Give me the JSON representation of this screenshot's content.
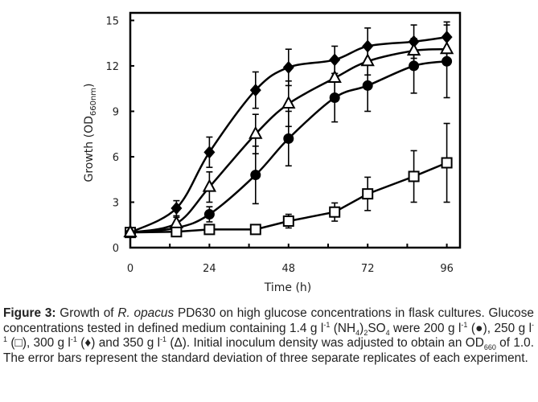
{
  "chart_data": {
    "type": "line",
    "title": "",
    "xlabel": "Time (h)",
    "ylabel_main": "Growth (OD",
    "ylabel_sub": "660nm",
    "ylabel_close": ")",
    "xlim": [
      0,
      100
    ],
    "ylim": [
      0,
      15.5
    ],
    "xticks": [
      0,
      24,
      48,
      72,
      96
    ],
    "xminor_ticks": [
      12,
      36,
      60,
      84
    ],
    "yticks": [
      0,
      3,
      6,
      9,
      12,
      15
    ],
    "grid": false,
    "legend": "none (described in caption)",
    "series": [
      {
        "name": "200 g/l glucose",
        "marker": "circle-filled",
        "x": [
          0,
          14,
          24,
          38,
          48,
          62,
          72,
          86,
          96
        ],
        "y": [
          1.0,
          1.3,
          2.2,
          4.8,
          7.2,
          9.9,
          10.7,
          12.0,
          12.3
        ],
        "err": [
          0.1,
          0.2,
          0.5,
          1.9,
          1.8,
          1.6,
          1.7,
          1.8,
          2.4
        ]
      },
      {
        "name": "250 g/l glucose",
        "marker": "square-open",
        "x": [
          0,
          14,
          24,
          38,
          48,
          62,
          72,
          86,
          96
        ],
        "y": [
          1.0,
          1.05,
          1.2,
          1.2,
          1.75,
          2.35,
          3.55,
          4.7,
          5.6
        ],
        "err": [
          0.1,
          0.1,
          0.15,
          0.15,
          0.45,
          0.6,
          1.1,
          1.7,
          2.6
        ]
      },
      {
        "name": "300 g/l glucose",
        "marker": "diamond-filled",
        "x": [
          0,
          14,
          24,
          38,
          48,
          62,
          72,
          86,
          96
        ],
        "y": [
          1.0,
          2.6,
          6.3,
          10.4,
          11.9,
          12.4,
          13.3,
          13.6,
          13.9
        ],
        "err": [
          0.1,
          0.5,
          1.0,
          1.2,
          1.2,
          0.9,
          1.2,
          1.1,
          1.0
        ]
      },
      {
        "name": "350 g/l glucose",
        "marker": "triangle-open",
        "x": [
          0,
          14,
          24,
          38,
          48,
          62,
          72,
          86,
          96
        ],
        "y": [
          1.0,
          1.6,
          4.0,
          7.5,
          9.5,
          11.2,
          12.3,
          13.0,
          13.1
        ],
        "err": [
          0.1,
          0.4,
          1.0,
          1.3,
          1.5,
          1.1,
          0.9,
          0.8,
          0.7
        ]
      }
    ]
  },
  "caption": {
    "label": "Figure 3:",
    "t1": " Growth of ",
    "organism": "R. opacus",
    "t2": " PD630 on high glucose concentrations in flask cultures. Glucose concentrations tested in defined medium containing 1.4 g l",
    "sup1": "-1",
    "t3": " (NH",
    "sub1": "4",
    "t4": ")",
    "sub2": "2",
    "t5": "SO",
    "sub3": "4",
    "t6": " were 200 g l",
    "sup2": "-1",
    "t7": " (●), 250 g l",
    "sup3": "-1",
    "t8": " (□), 300 g l",
    "sup4": "-1",
    "t9": " (♦) and 350 g l",
    "sup5": "-1",
    "t10": " (Δ). Initial inoculum density was adjusted to obtain an OD",
    "sub4": "660",
    "t11": " of 1.0. The error bars represent the standard deviation of three separate replicates of each experiment."
  }
}
